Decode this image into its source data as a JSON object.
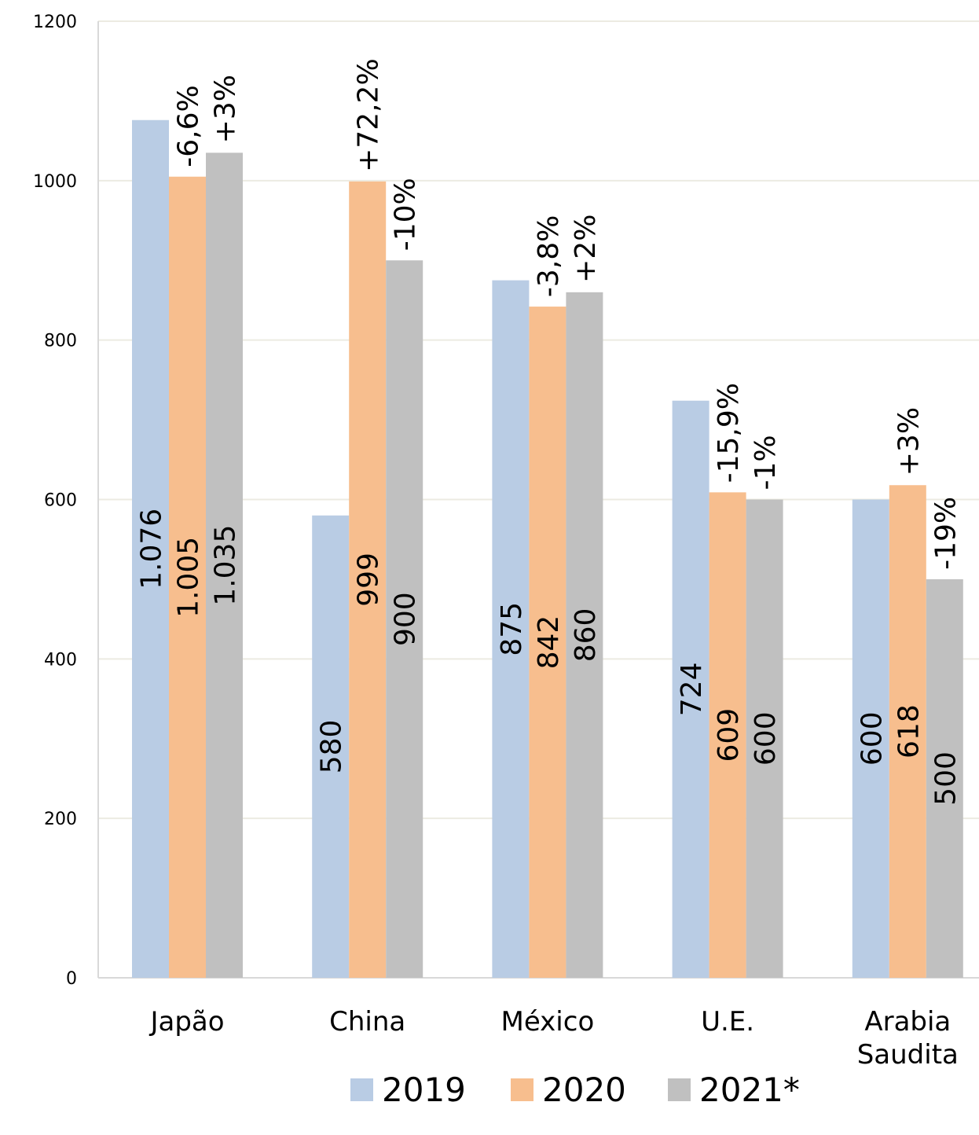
{
  "chart_data": {
    "type": "bar",
    "categories": [
      [
        "Japão"
      ],
      [
        "China"
      ],
      [
        "México"
      ],
      [
        "U.E."
      ],
      [
        "Arabia",
        "Saudita"
      ]
    ],
    "series": [
      {
        "name": "2019",
        "color": "#b9cce4",
        "values": [
          1076,
          580,
          875,
          724,
          600
        ],
        "labels": [
          "1.076",
          "580",
          "875",
          "724",
          "600"
        ],
        "changes": [
          "",
          "",
          "",
          "",
          ""
        ]
      },
      {
        "name": "2020",
        "color": "#f7be8e",
        "values": [
          1005,
          999,
          842,
          609,
          618
        ],
        "labels": [
          "1.005",
          "999",
          "842",
          "609",
          "618"
        ],
        "changes": [
          "-6,6%",
          "+72,2%",
          "-3,8%",
          "-15,9%",
          "+3%"
        ]
      },
      {
        "name": "2021*",
        "color": "#c0c0c0",
        "values": [
          1035,
          900,
          860,
          600,
          500
        ],
        "labels": [
          "1.035",
          "900",
          "860",
          "600",
          "500"
        ],
        "changes": [
          "+3%",
          "-10%",
          "+2%",
          "-1%",
          "-19%"
        ]
      }
    ],
    "yticks": [
      "0",
      "200",
      "400",
      "600",
      "800",
      "1000",
      "1200"
    ],
    "ylim": [
      0,
      1200
    ],
    "grid": true,
    "legend_position": "bottom",
    "title": "",
    "xlabel": "",
    "ylabel": ""
  }
}
